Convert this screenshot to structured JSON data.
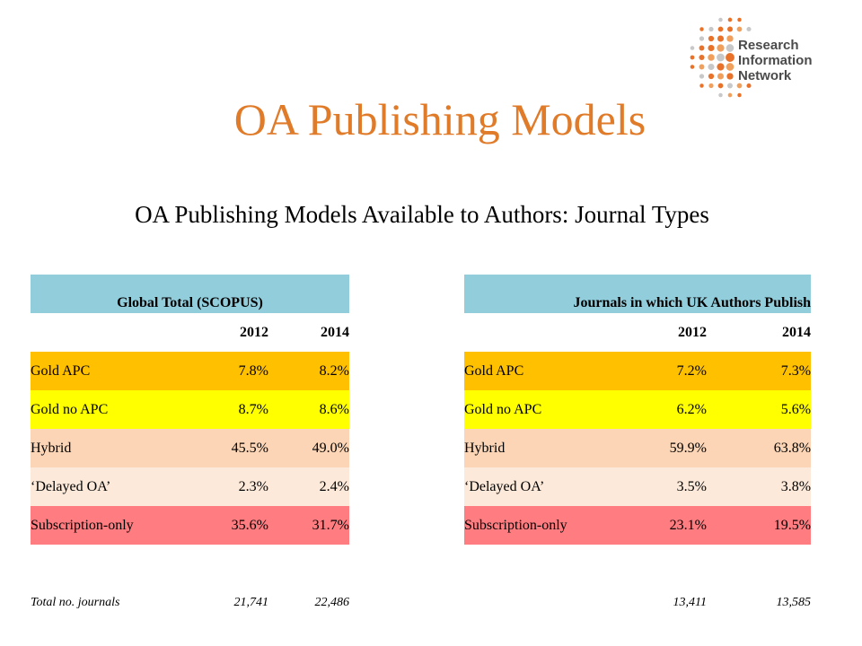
{
  "logo": {
    "lines": [
      "Research",
      "Information",
      "Network"
    ],
    "dot_colors": [
      "#e8722a",
      "#f0a05c",
      "#c8c8c8"
    ]
  },
  "title": "OA Publishing Models",
  "subtitle": "OA Publishing Models Available to Authors: Journal Types",
  "colors": {
    "title": "#e07b2a",
    "header": "#92cddc",
    "gold_apc": "#ffc000",
    "gold_no_apc": "#ffff00",
    "hybrid": "#fbd5b5",
    "delayed_oa": "#fde9d9",
    "subscription_only": "#ff7c80"
  },
  "tables": [
    {
      "header": "Global Total (SCOPUS)",
      "years": [
        "2012",
        "2014"
      ],
      "rows": [
        {
          "label": "Gold APC",
          "v2012": "7.8%",
          "v2014": "8.2%"
        },
        {
          "label": "Gold no APC",
          "v2012": "8.7%",
          "v2014": "8.6%"
        },
        {
          "label": "Hybrid",
          "v2012": "45.5%",
          "v2014": "49.0%"
        },
        {
          "label": "‘Delayed OA’",
          "v2012": "2.3%",
          "v2014": "2.4%"
        },
        {
          "label": "Subscription-only",
          "v2012": "35.6%",
          "v2014": "31.7%"
        }
      ],
      "total": {
        "label": "Total no. journals",
        "v2012": "21,741",
        "v2014": "22,486"
      }
    },
    {
      "header": "Journals in which UK Authors Publish",
      "years": [
        "2012",
        "2014"
      ],
      "rows": [
        {
          "label": "Gold APC",
          "v2012": "7.2%",
          "v2014": "7.3%"
        },
        {
          "label": "Gold no APC",
          "v2012": "6.2%",
          "v2014": "5.6%"
        },
        {
          "label": "Hybrid",
          "v2012": "59.9%",
          "v2014": "63.8%"
        },
        {
          "label": "‘Delayed OA’",
          "v2012": "3.5%",
          "v2014": "3.8%"
        },
        {
          "label": "Subscription-only",
          "v2012": "23.1%",
          "v2014": "19.5%"
        }
      ],
      "total": {
        "label": "",
        "v2012": "13,411",
        "v2014": "13,585"
      }
    }
  ]
}
